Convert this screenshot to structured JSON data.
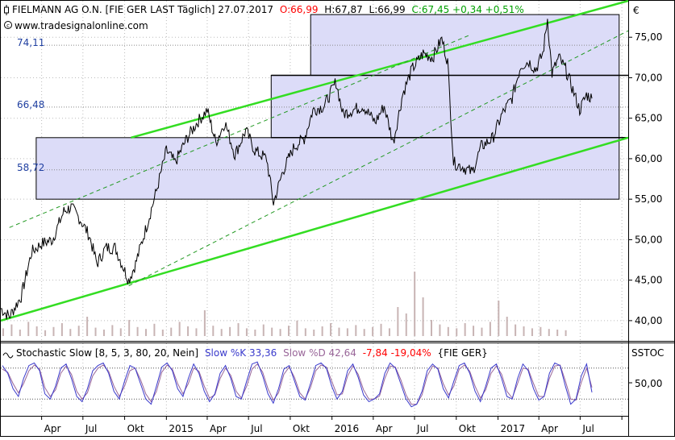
{
  "header": {
    "title": "FIELMANN AG O.N. [FIE GER LAST Täglich] 27.07.2017",
    "open": "O:66,99",
    "high": "H:67,87",
    "low": "L:66,99",
    "close_change": "C:67,45 +0,34 +0,51%",
    "source": "www.tradesignalonline.com",
    "currency": "€"
  },
  "colors": {
    "open": "#ff0000",
    "close_change": "#00a000",
    "level_labels": "#1f3fa0",
    "channel": "#33dd22",
    "box_fill": "#dcdcf8",
    "stoch_k": "#3a3acc",
    "stoch_d": "#996699",
    "negative": "#ff0000"
  },
  "indicator": {
    "name": "Stochastic Slow [8, 5, 3, 80, 20, Nein]",
    "k_label": "Slow %K 33,36",
    "d_label": "Slow %D 42,64",
    "change": "-7,84 -19,04%",
    "symbol": "{FIE GER}",
    "short_name": "SSTOC",
    "axis_tick": "50,00"
  },
  "chart_data": {
    "type": "line",
    "title": "FIELMANN AG O.N. [FIE GER LAST Täglich] 27.07.2017",
    "y_axis_ticks": [
      "75,00",
      "70,00",
      "65,00",
      "60,00",
      "55,00",
      "50,00",
      "45,00",
      "40,00"
    ],
    "ylim": [
      37.5,
      79.5
    ],
    "x_axis_labels": [
      "Apr",
      "Jul",
      "Okt",
      "2015",
      "Apr",
      "Jul",
      "Okt",
      "2016",
      "Apr",
      "Jul",
      "Okt",
      "2017",
      "Apr",
      "Jul"
    ],
    "x_range": [
      "2014-01-01",
      "2017-10-15"
    ],
    "level_labels": [
      {
        "label": "74,11",
        "value": 74.11
      },
      {
        "label": "66,48",
        "value": 66.48
      },
      {
        "label": "58,72",
        "value": 58.72
      }
    ],
    "boxes": [
      {
        "from": "2014-03-20",
        "to": "2017-09-25",
        "low": 55.0,
        "high": 62.6
      },
      {
        "from": "2015-08-20",
        "to": "2017-09-25",
        "low": 62.6,
        "high": 70.3
      },
      {
        "from": "2015-11-15",
        "to": "2017-09-25",
        "low": 70.3,
        "high": 77.8
      }
    ],
    "horizontal_lines": [
      70.3,
      62.6
    ],
    "channel_lines": [
      {
        "style": "solid",
        "points": [
          [
            "2014-01-01",
            40.0
          ],
          [
            "2017-10-15",
            62.6
          ]
        ]
      },
      {
        "style": "solid",
        "points": [
          [
            "2014-10-15",
            62.6
          ],
          [
            "2017-10-15",
            79.5
          ]
        ]
      },
      {
        "style": "dashed",
        "points": [
          [
            "2014-01-20",
            51.5
          ],
          [
            "2016-11-01",
            75.3
          ]
        ]
      },
      {
        "style": "dashed",
        "points": [
          [
            "2014-10-10",
            44.3
          ],
          [
            "2017-10-15",
            75.8
          ]
        ]
      }
    ],
    "series": [
      {
        "name": "FIE GER",
        "points": [
          [
            "2014-01-01",
            41.5
          ],
          [
            "2014-01-20",
            40.5
          ],
          [
            "2014-02-15",
            43.0
          ],
          [
            "2014-03-10",
            48.5
          ],
          [
            "2014-04-01",
            49.5
          ],
          [
            "2014-04-25",
            50.0
          ],
          [
            "2014-05-20",
            53.5
          ],
          [
            "2014-06-05",
            54.0
          ],
          [
            "2014-06-25",
            52.5
          ],
          [
            "2014-07-15",
            50.5
          ],
          [
            "2014-08-01",
            47.0
          ],
          [
            "2014-08-20",
            49.0
          ],
          [
            "2014-09-10",
            49.0
          ],
          [
            "2014-10-10",
            45.0
          ],
          [
            "2014-10-25",
            47.0
          ],
          [
            "2014-11-20",
            52.0
          ],
          [
            "2014-12-10",
            56.0
          ],
          [
            "2015-01-01",
            61.0
          ],
          [
            "2015-01-20",
            59.5
          ],
          [
            "2015-02-15",
            62.5
          ],
          [
            "2015-03-10",
            64.5
          ],
          [
            "2015-04-01",
            66.0
          ],
          [
            "2015-04-20",
            62.0
          ],
          [
            "2015-05-10",
            64.5
          ],
          [
            "2015-06-01",
            60.5
          ],
          [
            "2015-06-25",
            63.5
          ],
          [
            "2015-07-15",
            61.0
          ],
          [
            "2015-08-10",
            60.0
          ],
          [
            "2015-08-25",
            54.5
          ],
          [
            "2015-09-15",
            58.5
          ],
          [
            "2015-10-10",
            61.5
          ],
          [
            "2015-11-01",
            62.5
          ],
          [
            "2015-11-20",
            66.0
          ],
          [
            "2015-12-15",
            66.5
          ],
          [
            "2016-01-10",
            69.5
          ],
          [
            "2016-01-25",
            65.5
          ],
          [
            "2016-02-15",
            66.0
          ],
          [
            "2016-03-10",
            66.5
          ],
          [
            "2016-04-05",
            64.5
          ],
          [
            "2016-04-25",
            66.5
          ],
          [
            "2016-05-15",
            62.0
          ],
          [
            "2016-06-05",
            68.0
          ],
          [
            "2016-06-25",
            71.0
          ],
          [
            "2016-07-20",
            73.0
          ],
          [
            "2016-08-10",
            72.5
          ],
          [
            "2016-08-30",
            74.8
          ],
          [
            "2016-09-12",
            72.0
          ],
          [
            "2016-09-25",
            59.5
          ],
          [
            "2016-10-15",
            59.0
          ],
          [
            "2016-11-05",
            58.3
          ],
          [
            "2016-11-25",
            61.5
          ],
          [
            "2016-12-20",
            62.5
          ],
          [
            "2017-01-10",
            65.5
          ],
          [
            "2017-02-01",
            67.5
          ],
          [
            "2017-02-20",
            71.5
          ],
          [
            "2017-03-10",
            72.0
          ],
          [
            "2017-03-25",
            71.0
          ],
          [
            "2017-04-10",
            73.0
          ],
          [
            "2017-04-20",
            77.3
          ],
          [
            "2017-04-30",
            70.5
          ],
          [
            "2017-05-15",
            72.5
          ],
          [
            "2017-05-30",
            71.0
          ],
          [
            "2017-06-15",
            68.5
          ],
          [
            "2017-06-30",
            66.0
          ],
          [
            "2017-07-15",
            67.9
          ],
          [
            "2017-07-27",
            67.45
          ]
        ]
      }
    ],
    "volume": [
      0.12,
      0.18,
      0.1,
      0.22,
      0.15,
      0.09,
      0.14,
      0.2,
      0.11,
      0.16,
      0.3,
      0.13,
      0.1,
      0.17,
      0.12,
      0.25,
      0.14,
      0.11,
      0.19,
      0.1,
      0.13,
      0.22,
      0.15,
      0.12,
      0.4,
      0.16,
      0.11,
      0.14,
      0.2,
      0.12,
      0.1,
      0.18,
      0.13,
      0.11,
      0.16,
      0.24,
      0.12,
      0.1,
      0.15,
      0.2,
      0.13,
      0.12,
      0.17,
      0.11,
      0.14,
      0.19,
      0.12,
      0.45,
      0.35,
      1.0,
      0.6,
      0.25,
      0.18,
      0.14,
      0.12,
      0.2,
      0.16,
      0.13,
      0.22,
      0.55,
      0.3,
      0.18,
      0.15,
      0.12,
      0.14,
      0.11,
      0.1,
      0.09
    ],
    "stochastic": {
      "ylim": [
        0,
        100
      ],
      "levels": [
        80,
        20
      ],
      "k": [
        85,
        70,
        40,
        25,
        60,
        85,
        90,
        75,
        30,
        20,
        45,
        80,
        88,
        60,
        25,
        15,
        40,
        75,
        85,
        90,
        70,
        35,
        20,
        55,
        85,
        80,
        50,
        20,
        10,
        45,
        82,
        90,
        75,
        40,
        25,
        60,
        88,
        70,
        35,
        15,
        30,
        70,
        85,
        60,
        25,
        20,
        55,
        88,
        92,
        65,
        30,
        12,
        40,
        78,
        85,
        55,
        25,
        18,
        50,
        85,
        90,
        80,
        45,
        20,
        35,
        75,
        88,
        62,
        28,
        15,
        20,
        30,
        70,
        90,
        80,
        50,
        20,
        5,
        10,
        35,
        75,
        88,
        78,
        40,
        22,
        55,
        85,
        90,
        70,
        35,
        15,
        45,
        80,
        88,
        60,
        25,
        20,
        60,
        88,
        75,
        40,
        18,
        25,
        70,
        90,
        85,
        45,
        10,
        20,
        65,
        88,
        33
      ],
      "d": [
        78,
        72,
        50,
        32,
        50,
        75,
        86,
        78,
        42,
        25,
        38,
        70,
        84,
        68,
        35,
        20,
        32,
        65,
        80,
        86,
        74,
        45,
        25,
        45,
        75,
        80,
        58,
        30,
        15,
        35,
        72,
        86,
        78,
        50,
        30,
        50,
        80,
        74,
        45,
        22,
        28,
        60,
        80,
        66,
        35,
        22,
        45,
        78,
        88,
        72,
        40,
        18,
        32,
        68,
        82,
        62,
        32,
        20,
        42,
        75,
        86,
        82,
        55,
        28,
        30,
        65,
        84,
        68,
        38,
        20,
        20,
        26,
        60,
        84,
        82,
        58,
        28,
        10,
        10,
        28,
        65,
        84,
        80,
        50,
        28,
        45,
        78,
        86,
        74,
        45,
        22,
        38,
        70,
        84,
        68,
        35,
        22,
        50,
        80,
        78,
        50,
        25,
        25,
        60,
        84,
        86,
        55,
        20,
        18,
        52,
        80,
        42.64
      ]
    }
  }
}
